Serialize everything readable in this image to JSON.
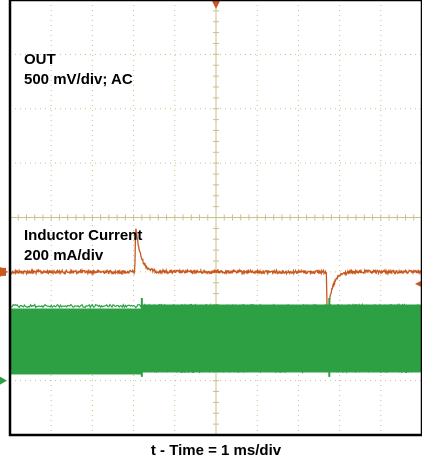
{
  "chart_data": {
    "type": "line",
    "title": "",
    "xlabel": "t - Time = 1 ms/div",
    "ylabel": "",
    "grid": true,
    "divisions": {
      "x": 10,
      "y": 8
    },
    "x_unit": "ms",
    "x_per_div_ms": 1,
    "xlim_ms": [
      0,
      10
    ],
    "series": [
      {
        "name": "",
        "label_lines": [
          "OUT",
          "500 mV/div; AC"
        ],
        "color": "#c8581e",
        "unit": "mV",
        "per_div": 500,
        "baseline_div": 5.0,
        "noise_div": 0.03,
        "events": [
          {
            "t_ms": 3.05,
            "peak_div": -0.85,
            "decay_ms": 0.12
          },
          {
            "t_ms": 7.7,
            "peak_div": 0.85,
            "decay_ms": 0.12
          }
        ]
      },
      {
        "name": "",
        "label_lines": [
          "Inductor Current",
          "200 mA/div"
        ],
        "color": "#2ca043",
        "unit": "mA",
        "per_div": 200,
        "band_div": [
          1.15,
          2.4
        ],
        "steps": [
          {
            "t_ms": 3.2,
            "dip_div": 0.2
          },
          {
            "t_ms": 7.75,
            "dip_div": 0.2
          }
        ]
      }
    ],
    "markers": {
      "ch1_ground_color": "#c8581e",
      "ch2_ground_color": "#2ca043",
      "trigger_color": "#c8581e"
    }
  }
}
